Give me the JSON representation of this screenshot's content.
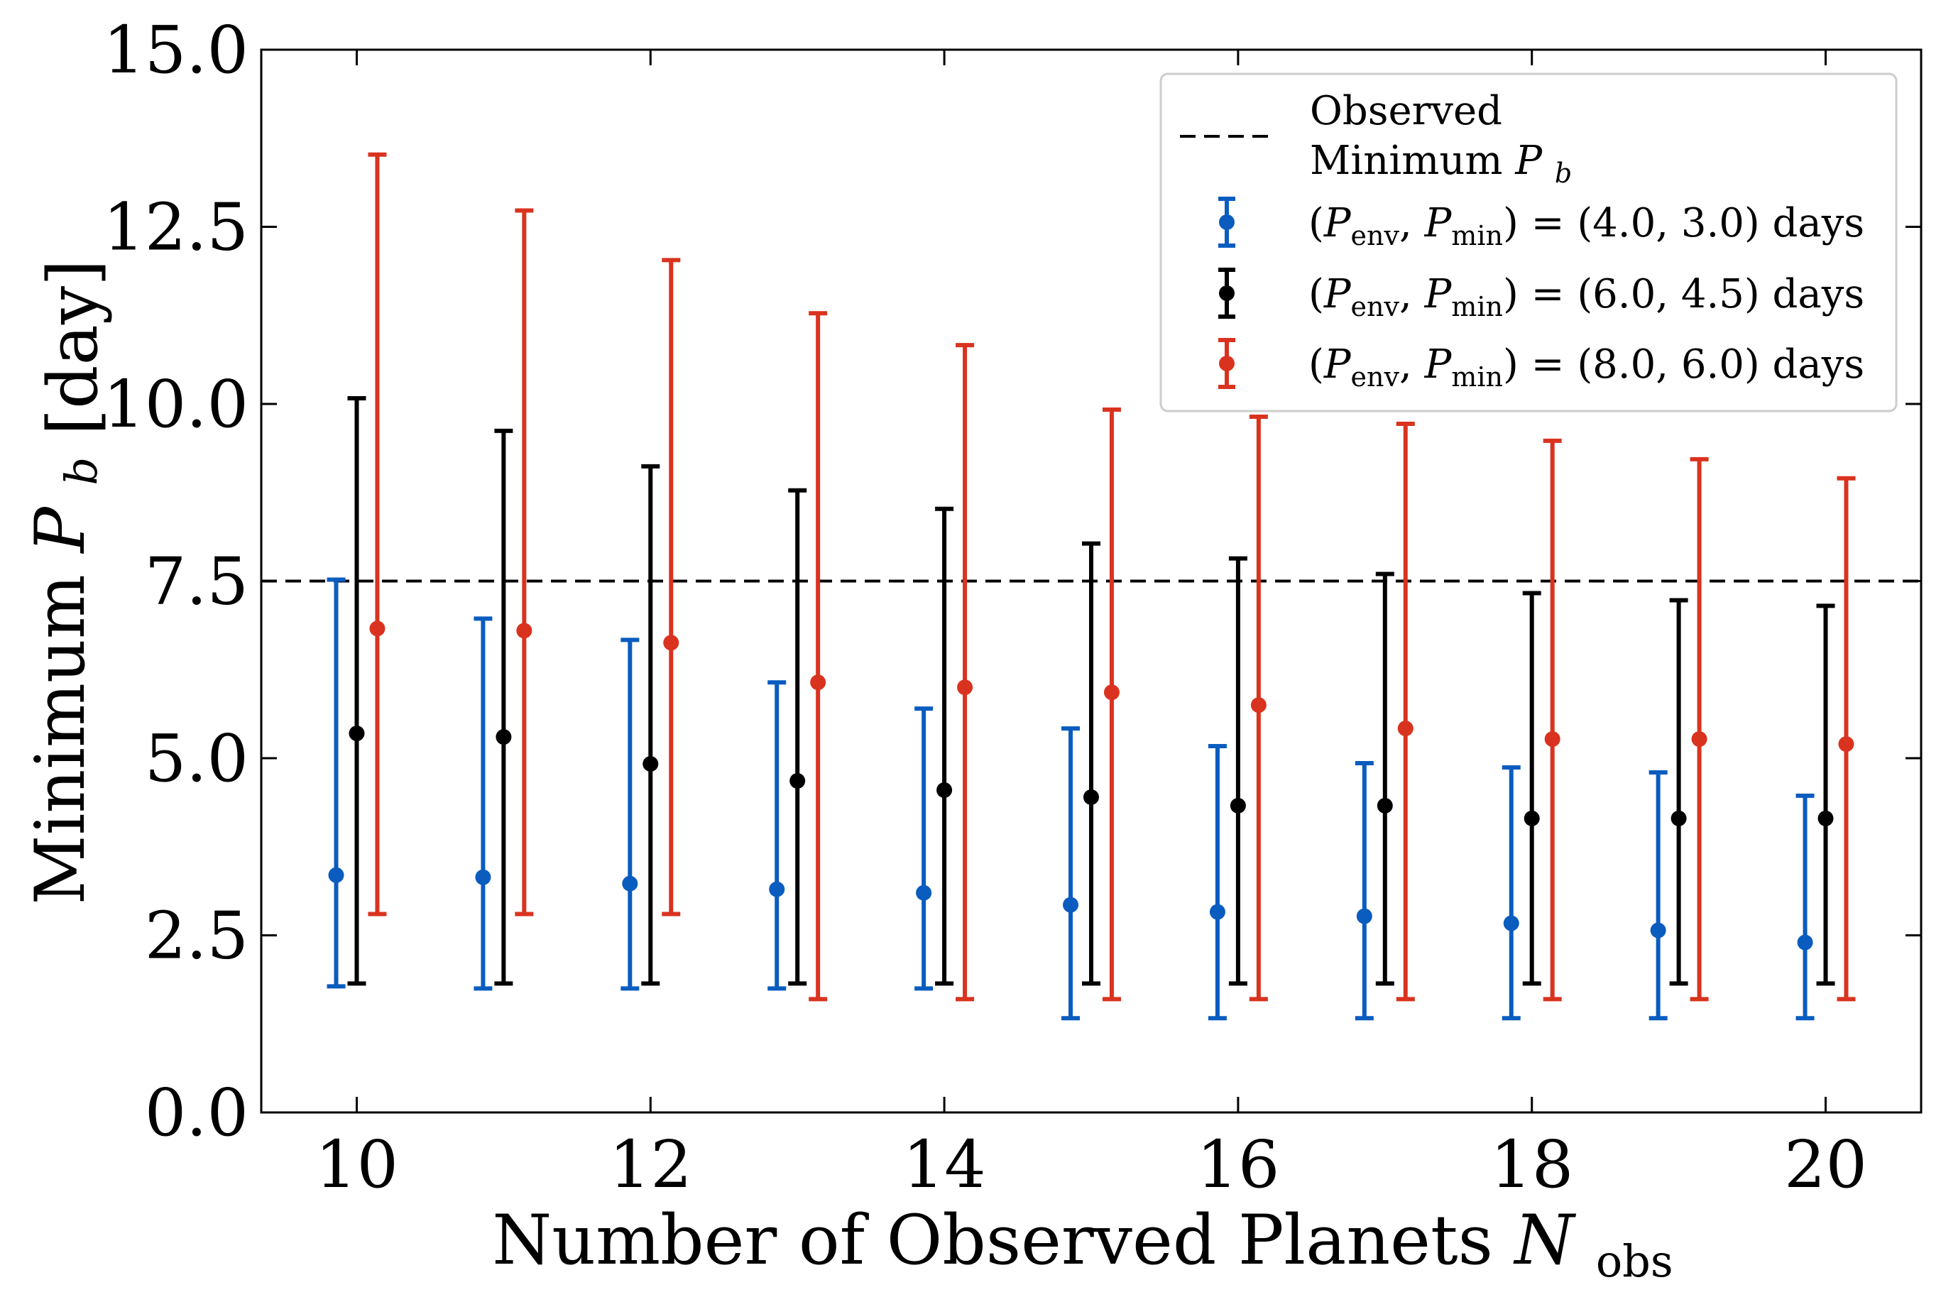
{
  "chart_data": {
    "type": "scatter",
    "xlabel": "Number of Observed Planets",
    "xlabel_symbol": "N",
    "xlabel_subscript": "obs",
    "ylabel": "Minimum",
    "ylabel_symbol": "P",
    "ylabel_subscript": "b",
    "ylabel_unit": "[day]",
    "xlim": [
      9.35,
      20.65
    ],
    "ylim": [
      0.0,
      15.0
    ],
    "xticks": [
      10,
      12,
      14,
      16,
      18,
      20
    ],
    "xtick_labels": [
      "10",
      "12",
      "14",
      "16",
      "18",
      "20"
    ],
    "yticks": [
      0.0,
      2.5,
      5.0,
      7.5,
      10.0,
      12.5,
      15.0
    ],
    "ytick_labels": [
      "0.0",
      "2.5",
      "5.0",
      "7.5",
      "10.0",
      "12.5",
      "15.0"
    ],
    "grid": false,
    "legend_position": "top-right",
    "x": [
      10,
      11,
      12,
      13,
      14,
      15,
      16,
      17,
      18,
      19,
      20
    ],
    "reference_line": {
      "y": 7.5,
      "style": "dashed",
      "color": "#000000",
      "label_line1": "Observed",
      "label_line2_text": "Minimum",
      "label_line2_symbol": "P",
      "label_line2_subscript": "b"
    },
    "series": [
      {
        "name": "(Penv, Pmin) = (4.0, 3.0) days",
        "legend_values": "(4.0, 3.0) days",
        "color": "#0a5cbf",
        "x_offset": -0.14,
        "y": [
          3.35,
          3.32,
          3.23,
          3.15,
          3.1,
          2.93,
          2.83,
          2.77,
          2.67,
          2.57,
          2.4
        ],
        "y_lower": [
          1.78,
          1.75,
          1.75,
          1.75,
          1.75,
          1.33,
          1.33,
          1.33,
          1.33,
          1.33,
          1.33
        ],
        "y_upper": [
          7.52,
          6.97,
          6.67,
          6.07,
          5.7,
          5.42,
          5.17,
          4.93,
          4.87,
          4.8,
          4.47
        ]
      },
      {
        "name": "(Penv, Pmin) = (6.0, 4.5) days",
        "legend_values": "(6.0, 4.5) days",
        "color": "#000000",
        "x_offset": 0.0,
        "y": [
          5.35,
          5.3,
          4.92,
          4.68,
          4.55,
          4.45,
          4.33,
          4.33,
          4.15,
          4.15,
          4.15
        ],
        "y_lower": [
          1.82,
          1.82,
          1.82,
          1.82,
          1.82,
          1.82,
          1.82,
          1.82,
          1.82,
          1.82,
          1.82
        ],
        "y_upper": [
          10.08,
          9.62,
          9.12,
          8.78,
          8.52,
          8.03,
          7.82,
          7.6,
          7.33,
          7.23,
          7.15
        ]
      },
      {
        "name": "(Penv, Pmin) = (8.0, 6.0) days",
        "legend_values": "(8.0, 6.0) days",
        "color": "#d9331f",
        "x_offset": 0.14,
        "y": [
          6.83,
          6.8,
          6.63,
          6.07,
          6.0,
          5.93,
          5.75,
          5.42,
          5.27,
          5.27,
          5.2
        ],
        "y_lower": [
          2.8,
          2.8,
          2.8,
          1.6,
          1.6,
          1.6,
          1.6,
          1.6,
          1.6,
          1.6,
          1.6
        ],
        "y_upper": [
          13.52,
          12.73,
          12.03,
          11.28,
          10.83,
          9.92,
          9.82,
          9.72,
          9.48,
          9.22,
          8.95
        ]
      }
    ],
    "legend_prefix": {
      "symbol": "P",
      "sub1": "env",
      "sub2": "min"
    }
  }
}
